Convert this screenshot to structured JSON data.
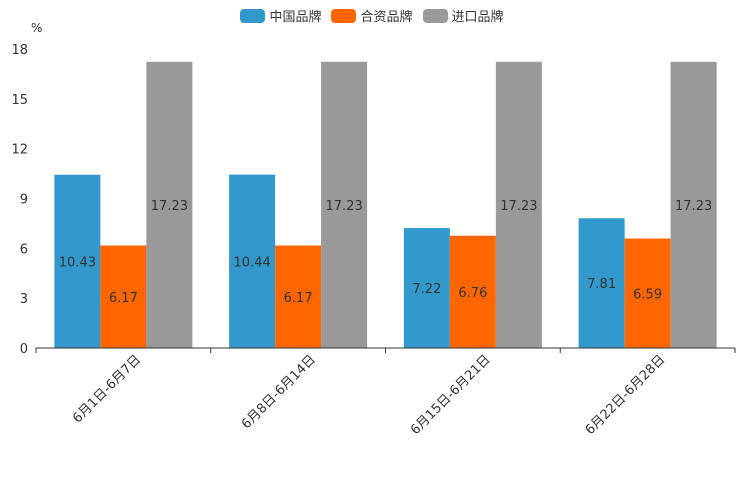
{
  "chart_data": {
    "type": "bar",
    "ylabel": "%",
    "ylim": [
      0,
      18
    ],
    "yticks": [
      0,
      3,
      6,
      9,
      12,
      15,
      18
    ],
    "categories": [
      "6月1日-6月7日",
      "6月8日-6月14日",
      "6月15日-6月21日",
      "6月22日-6月28日"
    ],
    "series": [
      {
        "name": "中国品牌",
        "color": "#3399cc",
        "values": [
          10.43,
          10.44,
          7.22,
          7.81
        ]
      },
      {
        "name": "合资品牌",
        "color": "#ff6600",
        "values": [
          6.17,
          6.17,
          6.76,
          6.59
        ]
      },
      {
        "name": "进口品牌",
        "color": "#999999",
        "values": [
          17.23,
          17.23,
          17.23,
          17.23
        ]
      }
    ],
    "legend_position": "top-center",
    "grid": false
  }
}
